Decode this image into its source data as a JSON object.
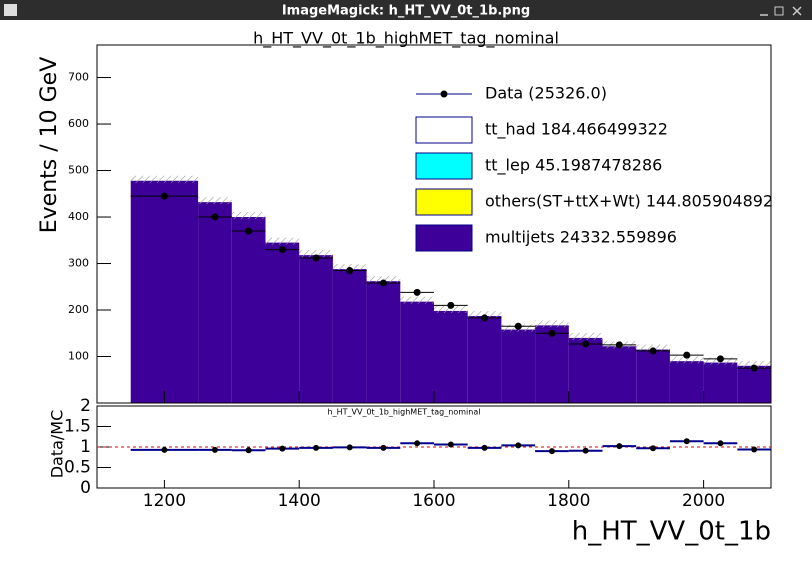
{
  "window": {
    "title": "ImageMagick: h_HT_VV_0t_1b.png"
  },
  "chart_data": {
    "type": "stacked_histogram_ratio",
    "title": "h_HT_VV_0t_1b_highMET_tag_nominal",
    "ratio_title": "h_HT_VV_0t_1b_highMET_tag_nominal",
    "ylabel": "Events / 10 GeV",
    "ratio_ylabel": "Data/MC",
    "xlabel": "h_HT_VV_0t_1b",
    "bins": [
      1150,
      1250,
      1300,
      1350,
      1400,
      1450,
      1500,
      1550,
      1600,
      1650,
      1700,
      1750,
      1800,
      1850,
      1900,
      1950,
      2000,
      2050,
      2100
    ],
    "series": [
      {
        "name": "multijets",
        "color": "#3d0099",
        "values": [
          478,
          432,
          400,
          345,
          318,
          288,
          262,
          218,
          198,
          187,
          158,
          167,
          140,
          122,
          115,
          90,
          87,
          80
        ]
      }
    ],
    "data": {
      "name": "Data",
      "color": "#000000",
      "values": [
        445,
        400,
        370,
        330,
        312,
        285,
        258,
        238,
        210,
        183,
        165,
        150,
        127,
        125,
        112,
        103,
        95,
        75
      ]
    },
    "ratio": [
      0.93,
      0.93,
      0.92,
      0.96,
      0.98,
      0.99,
      0.98,
      1.09,
      1.06,
      0.98,
      1.04,
      0.9,
      0.91,
      1.02,
      0.97,
      1.14,
      1.09,
      0.94
    ],
    "ratio_reference": 1,
    "legend": [
      {
        "label": "Data (25326.0)",
        "kind": "marker",
        "color": "#000000"
      },
      {
        "label": "tt_had 184.466499322",
        "kind": "box",
        "color": "#ffffff"
      },
      {
        "label": "tt_lep 45.1987478286",
        "kind": "box",
        "color": "#00ffff"
      },
      {
        "label": "others(ST+ttX+Wt) 144.805904892",
        "kind": "box",
        "color": "#ffff00"
      },
      {
        "label": "multijets 24332.559896",
        "kind": "box",
        "color": "#3d0099"
      }
    ],
    "xlim": [
      1100,
      2100
    ],
    "xticks": [
      1200,
      1400,
      1600,
      1800,
      2000
    ],
    "ylim": [
      0,
      770
    ],
    "yticks": [
      100,
      200,
      300,
      400,
      500,
      600,
      700
    ],
    "ratio_ylim": [
      0,
      2
    ],
    "ratio_yticks": [
      0,
      0.5,
      1,
      1.5,
      2
    ]
  }
}
